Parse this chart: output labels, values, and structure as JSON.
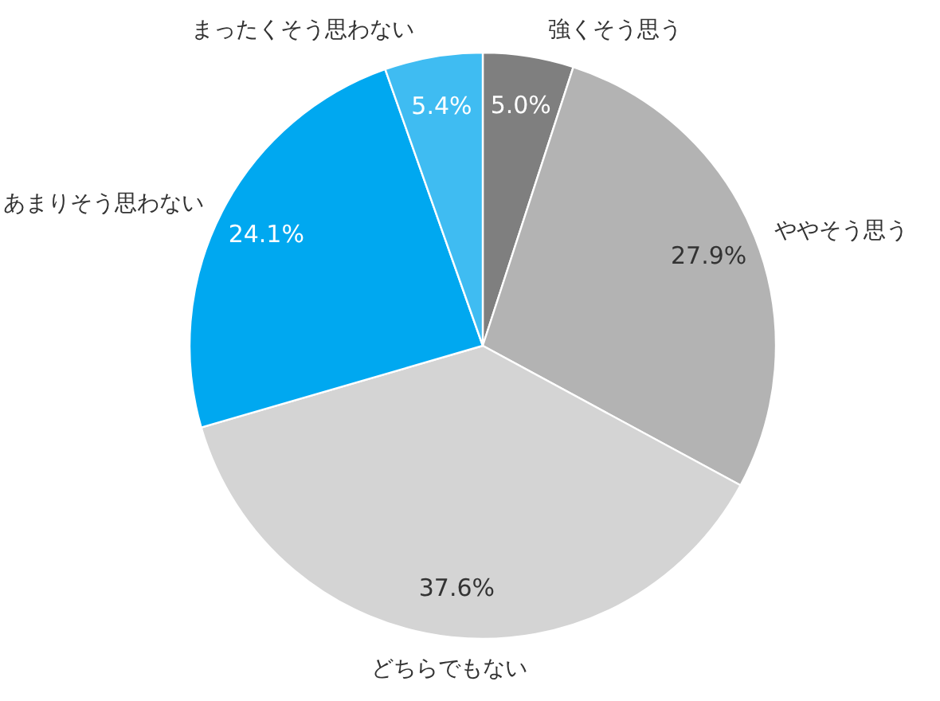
{
  "chart_data": {
    "type": "pie",
    "categories": [
      "強くそう思う",
      "ややそう思う",
      "どちらでもない",
      "あまりそう思わない",
      "まったくそう思わない"
    ],
    "values": [
      5.0,
      27.9,
      37.6,
      24.1,
      5.4
    ],
    "colors": [
      "#7f7f7f",
      "#b3b3b3",
      "#d4d4d4",
      "#00a8f0",
      "#3fbcf2"
    ],
    "value_labels": [
      "5.0%",
      "27.9%",
      "37.6%",
      "24.1%",
      "5.4%"
    ]
  }
}
